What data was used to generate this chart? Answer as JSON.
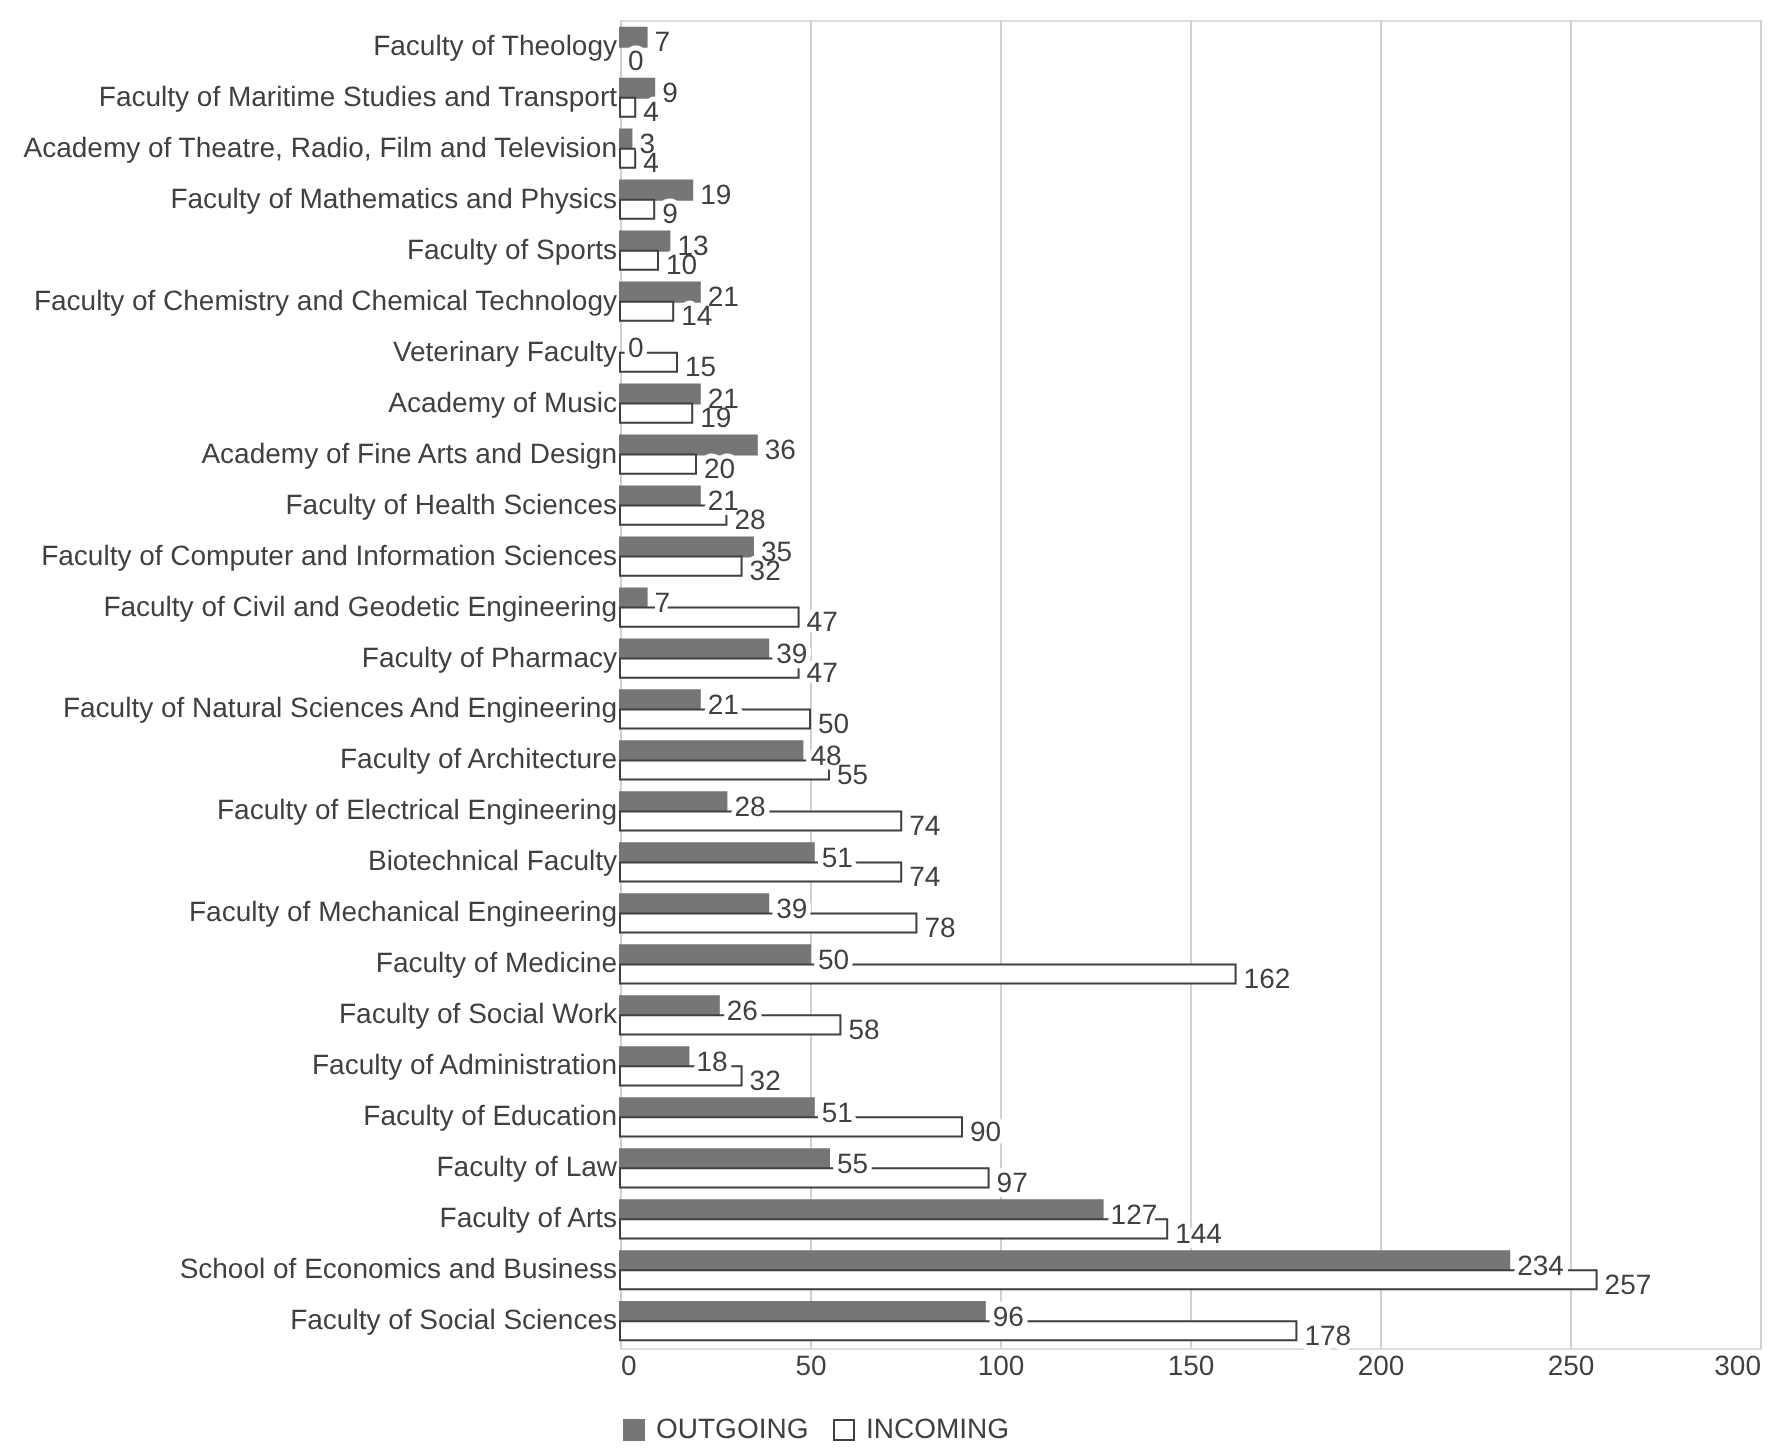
{
  "chart_data": {
    "type": "bar",
    "orientation": "horizontal",
    "categories": [
      "Faculty of Theology",
      "Faculty of Maritime Studies and Transport",
      "Academy of Theatre, Radio, Film and Television",
      "Faculty of Mathematics and Physics",
      "Faculty of Sports",
      "Faculty of Chemistry and Chemical Technology",
      "Veterinary Faculty",
      "Academy of Music",
      "Academy of Fine Arts and Design",
      "Faculty of Health Sciences",
      "Faculty of Computer and Information Sciences",
      "Faculty of Civil and Geodetic Engineering",
      "Faculty of Pharmacy",
      "Faculty of Natural Sciences And Engineering",
      "Faculty of Architecture",
      "Faculty of Electrical Engineering",
      "Biotechnical Faculty",
      "Faculty of Mechanical Engineering",
      "Faculty of Medicine",
      "Faculty of Social Work",
      "Faculty of Administration",
      "Faculty of Education",
      "Faculty of Law",
      "Faculty of Arts",
      "School of Economics and Business",
      "Faculty of Social Sciences"
    ],
    "series": [
      {
        "name": "OUTGOING",
        "color": "#767676",
        "values": [
          7,
          9,
          3,
          19,
          13,
          21,
          0,
          21,
          36,
          21,
          35,
          7,
          39,
          21,
          48,
          28,
          51,
          39,
          50,
          26,
          18,
          51,
          55,
          127,
          234,
          96
        ]
      },
      {
        "name": "INCOMING",
        "color": "#ffffff",
        "values": [
          0,
          4,
          4,
          9,
          10,
          14,
          15,
          19,
          20,
          28,
          32,
          47,
          47,
          50,
          55,
          74,
          74,
          78,
          162,
          58,
          32,
          90,
          97,
          144,
          257,
          178
        ]
      }
    ],
    "xlim": [
      0,
      300
    ],
    "xticks": [
      0,
      50,
      100,
      150,
      200,
      250,
      300
    ],
    "grid": "x",
    "legend": "bottom",
    "data_labels": true
  }
}
